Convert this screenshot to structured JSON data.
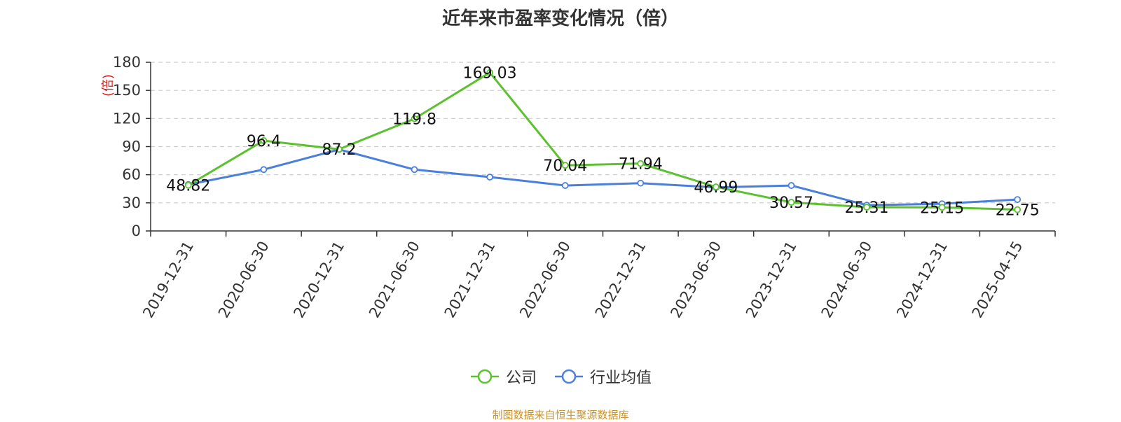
{
  "chart_data": {
    "type": "line",
    "title": "近年来市盈率变化情况（倍）",
    "ylabel": "(倍)",
    "ylim": [
      0,
      180
    ],
    "yticks": [
      0,
      30,
      60,
      90,
      120,
      150,
      180
    ],
    "grid": true,
    "legend_position": "bottom-center",
    "categories": [
      "2019-12-31",
      "2020-06-30",
      "2020-12-31",
      "2021-06-30",
      "2021-12-31",
      "2022-06-30",
      "2022-12-31",
      "2023-06-30",
      "2023-12-31",
      "2024-06-30",
      "2024-12-31",
      "2025-04-15"
    ],
    "series": [
      {
        "name": "公司",
        "color": "#5bc12f",
        "values": [
          48.82,
          96.4,
          87.2,
          119.8,
          169.03,
          70.04,
          71.94,
          46.99,
          30.57,
          25.31,
          25.15,
          22.75
        ],
        "labels": [
          "48.82",
          "96.4",
          "87.2",
          "119.8",
          "169.03",
          "70.04",
          "71.94",
          "46.99",
          "30.57",
          "25.31",
          "25.15",
          "22.75"
        ]
      },
      {
        "name": "行业均值",
        "color": "#4a7fdc",
        "values": [
          49.5,
          65.5,
          87.0,
          65.5,
          57.5,
          48.5,
          51.0,
          46.5,
          48.5,
          27.5,
          29.0,
          33.5
        ]
      }
    ],
    "source_note": "制图数据来自恒生聚源数据库"
  },
  "colors": {
    "axis": "#333333",
    "grid": "#cccccc",
    "ylabel": "#e02020",
    "source": "#c9922d"
  }
}
